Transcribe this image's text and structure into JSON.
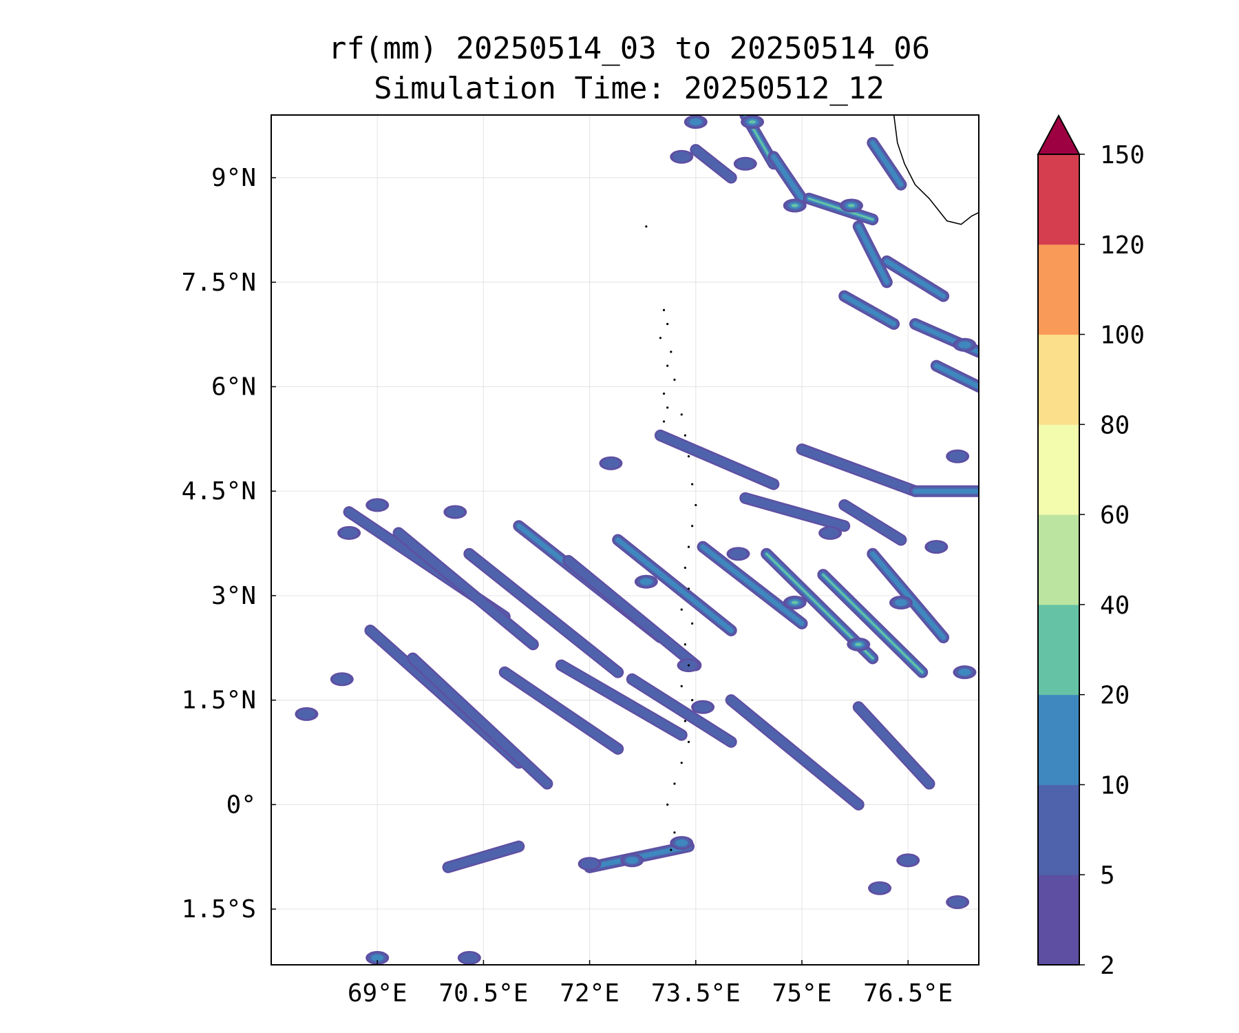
{
  "title": "rf(mm) 20250514_03 to 20250514_06",
  "subtitle": "Simulation Time: 20250512_12",
  "map": {
    "lon_range": [
      67.5,
      77.5
    ],
    "lat_range": [
      -2.3,
      9.9
    ],
    "x_ticks": [
      69,
      70.5,
      72,
      73.5,
      75,
      76.5
    ],
    "x_tick_labels": [
      "69°E",
      "70.5°E",
      "72°E",
      "73.5°E",
      "75°E",
      "76.5°E"
    ],
    "y_ticks": [
      -1.5,
      0,
      1.5,
      3,
      4.5,
      6,
      7.5,
      9
    ],
    "y_tick_labels": [
      "1.5°S",
      "0°",
      "1.5°N",
      "3°N",
      "4.5°N",
      "6°N",
      "7.5°N",
      "9°N"
    ],
    "gridlines": true,
    "colormap": "Spectral_r",
    "coastline_color": "#000000",
    "rain_features": {
      "bands": [
        {
          "lon1": 68.6,
          "lat1": 4.2,
          "lon2": 70.8,
          "lat2": 2.7,
          "level": 1
        },
        {
          "lon1": 69.3,
          "lat1": 3.9,
          "lon2": 71.2,
          "lat2": 2.3,
          "level": 1
        },
        {
          "lon1": 70.3,
          "lat1": 3.6,
          "lon2": 72.4,
          "lat2": 1.9,
          "level": 1
        },
        {
          "lon1": 71.0,
          "lat1": 4.0,
          "lon2": 73.0,
          "lat2": 2.4,
          "level": 2
        },
        {
          "lon1": 71.7,
          "lat1": 3.5,
          "lon2": 73.5,
          "lat2": 2.0,
          "level": 1
        },
        {
          "lon1": 72.4,
          "lat1": 3.8,
          "lon2": 74.0,
          "lat2": 2.5,
          "level": 2
        },
        {
          "lon1": 73.6,
          "lat1": 3.7,
          "lon2": 75.0,
          "lat2": 2.6,
          "level": 2
        },
        {
          "lon1": 74.5,
          "lat1": 3.6,
          "lon2": 76.0,
          "lat2": 2.1,
          "level": 3
        },
        {
          "lon1": 75.3,
          "lat1": 3.3,
          "lon2": 76.7,
          "lat2": 1.9,
          "level": 3
        },
        {
          "lon1": 76.0,
          "lat1": 3.6,
          "lon2": 77.0,
          "lat2": 2.4,
          "level": 2
        },
        {
          "lon1": 68.9,
          "lat1": 2.5,
          "lon2": 71.0,
          "lat2": 0.6,
          "level": 1
        },
        {
          "lon1": 69.5,
          "lat1": 2.1,
          "lon2": 71.4,
          "lat2": 0.3,
          "level": 1
        },
        {
          "lon1": 70.8,
          "lat1": 1.9,
          "lon2": 72.4,
          "lat2": 0.8,
          "level": 1
        },
        {
          "lon1": 71.6,
          "lat1": 2.0,
          "lon2": 73.3,
          "lat2": 1.0,
          "level": 1
        },
        {
          "lon1": 72.6,
          "lat1": 1.8,
          "lon2": 74.0,
          "lat2": 0.9,
          "level": 1
        },
        {
          "lon1": 74.0,
          "lat1": 1.5,
          "lon2": 75.8,
          "lat2": 0.0,
          "level": 1
        },
        {
          "lon1": 75.8,
          "lat1": 1.4,
          "lon2": 76.8,
          "lat2": 0.3,
          "level": 1
        },
        {
          "lon1": 73.0,
          "lat1": 5.3,
          "lon2": 74.6,
          "lat2": 4.6,
          "level": 1
        },
        {
          "lon1": 75.0,
          "lat1": 5.1,
          "lon2": 76.6,
          "lat2": 4.5,
          "level": 1
        },
        {
          "lon1": 74.2,
          "lat1": 4.4,
          "lon2": 75.6,
          "lat2": 4.0,
          "level": 1
        },
        {
          "lon1": 75.6,
          "lat1": 4.3,
          "lon2": 76.4,
          "lat2": 3.8,
          "level": 1
        },
        {
          "lon1": 76.6,
          "lat1": 4.5,
          "lon2": 77.5,
          "lat2": 4.5,
          "level": 2
        },
        {
          "lon1": 70.0,
          "lat1": -0.9,
          "lon2": 71.0,
          "lat2": -0.6,
          "level": 1
        },
        {
          "lon1": 72.0,
          "lat1": -0.9,
          "lon2": 73.4,
          "lat2": -0.6,
          "level": 2
        },
        {
          "lon1": 74.2,
          "lat1": 9.9,
          "lon2": 74.6,
          "lat2": 9.2,
          "level": 3
        },
        {
          "lon1": 74.6,
          "lat1": 9.3,
          "lon2": 75.0,
          "lat2": 8.7,
          "level": 2
        },
        {
          "lon1": 75.1,
          "lat1": 8.7,
          "lon2": 76.0,
          "lat2": 8.4,
          "level": 3
        },
        {
          "lon1": 75.8,
          "lat1": 8.3,
          "lon2": 76.2,
          "lat2": 7.5,
          "level": 2
        },
        {
          "lon1": 76.2,
          "lat1": 7.8,
          "lon2": 77.0,
          "lat2": 7.3,
          "level": 2
        },
        {
          "lon1": 75.6,
          "lat1": 7.3,
          "lon2": 76.3,
          "lat2": 6.9,
          "level": 2
        },
        {
          "lon1": 76.6,
          "lat1": 6.9,
          "lon2": 77.5,
          "lat2": 6.5,
          "level": 2
        },
        {
          "lon1": 76.9,
          "lat1": 6.3,
          "lon2": 77.5,
          "lat2": 6.0,
          "level": 2
        },
        {
          "lon1": 73.5,
          "lat1": 9.4,
          "lon2": 74.0,
          "lat2": 9.0,
          "level": 1
        },
        {
          "lon1": 76.0,
          "lat1": 9.5,
          "lon2": 76.4,
          "lat2": 8.9,
          "level": 2
        }
      ],
      "blobs": [
        {
          "lon": 74.3,
          "lat": 9.8,
          "level": 3
        },
        {
          "lon": 74.9,
          "lat": 8.6,
          "level": 3
        },
        {
          "lon": 75.7,
          "lat": 8.6,
          "level": 3
        },
        {
          "lon": 73.5,
          "lat": 9.8,
          "level": 2
        },
        {
          "lon": 73.3,
          "lat": 9.3,
          "level": 1
        },
        {
          "lon": 74.9,
          "lat": 2.9,
          "level": 3
        },
        {
          "lon": 75.8,
          "lat": 2.3,
          "level": 3
        },
        {
          "lon": 76.4,
          "lat": 2.9,
          "level": 2
        },
        {
          "lon": 77.3,
          "lat": 1.9,
          "level": 2
        },
        {
          "lon": 77.3,
          "lat": 6.6,
          "level": 2
        },
        {
          "lon": 72.6,
          "lat": -0.8,
          "level": 2
        },
        {
          "lon": 72.0,
          "lat": -0.85,
          "level": 1
        },
        {
          "lon": 73.3,
          "lat": -0.55,
          "level": 2
        },
        {
          "lon": 69.0,
          "lat": -2.2,
          "level": 2
        },
        {
          "lon": 70.3,
          "lat": -2.2,
          "level": 1
        },
        {
          "lon": 73.4,
          "lat": 2.0,
          "level": 1
        },
        {
          "lon": 72.8,
          "lat": 3.2,
          "level": 2
        },
        {
          "lon": 70.1,
          "lat": 4.2,
          "level": 1
        },
        {
          "lon": 72.3,
          "lat": 4.9,
          "level": 1
        },
        {
          "lon": 76.5,
          "lat": -0.8,
          "level": 1
        },
        {
          "lon": 77.2,
          "lat": -1.4,
          "level": 1
        },
        {
          "lon": 76.1,
          "lat": -1.2,
          "level": 1
        },
        {
          "lon": 73.6,
          "lat": 1.4,
          "level": 1
        },
        {
          "lon": 77.2,
          "lat": 5.0,
          "level": 1
        },
        {
          "lon": 68.6,
          "lat": 3.9,
          "level": 1
        },
        {
          "lon": 69.0,
          "lat": 4.3,
          "level": 1
        },
        {
          "lon": 76.9,
          "lat": 3.7,
          "level": 1
        },
        {
          "lon": 74.1,
          "lat": 3.6,
          "level": 1
        },
        {
          "lon": 75.4,
          "lat": 3.9,
          "level": 1
        },
        {
          "lon": 68.5,
          "lat": 1.8,
          "level": 1
        },
        {
          "lon": 68.0,
          "lat": 1.3,
          "level": 1
        },
        {
          "lon": 74.2,
          "lat": 9.2,
          "level": 1
        }
      ]
    }
  },
  "colorbar": {
    "levels": [
      2,
      5,
      10,
      20,
      40,
      60,
      80,
      100,
      120,
      150
    ],
    "tick_labels": [
      "2",
      "5",
      "10",
      "20",
      "40",
      "60",
      "80",
      "100",
      "120",
      "150"
    ],
    "colors": [
      "#5e4fa2",
      "#4f63ac",
      "#3f88bf",
      "#66c2a5",
      "#bbe4a0",
      "#f3fbad",
      "#fcdf8a",
      "#f99a59",
      "#d53e4f"
    ],
    "extend_color": "#9e0142",
    "extend": "max"
  }
}
